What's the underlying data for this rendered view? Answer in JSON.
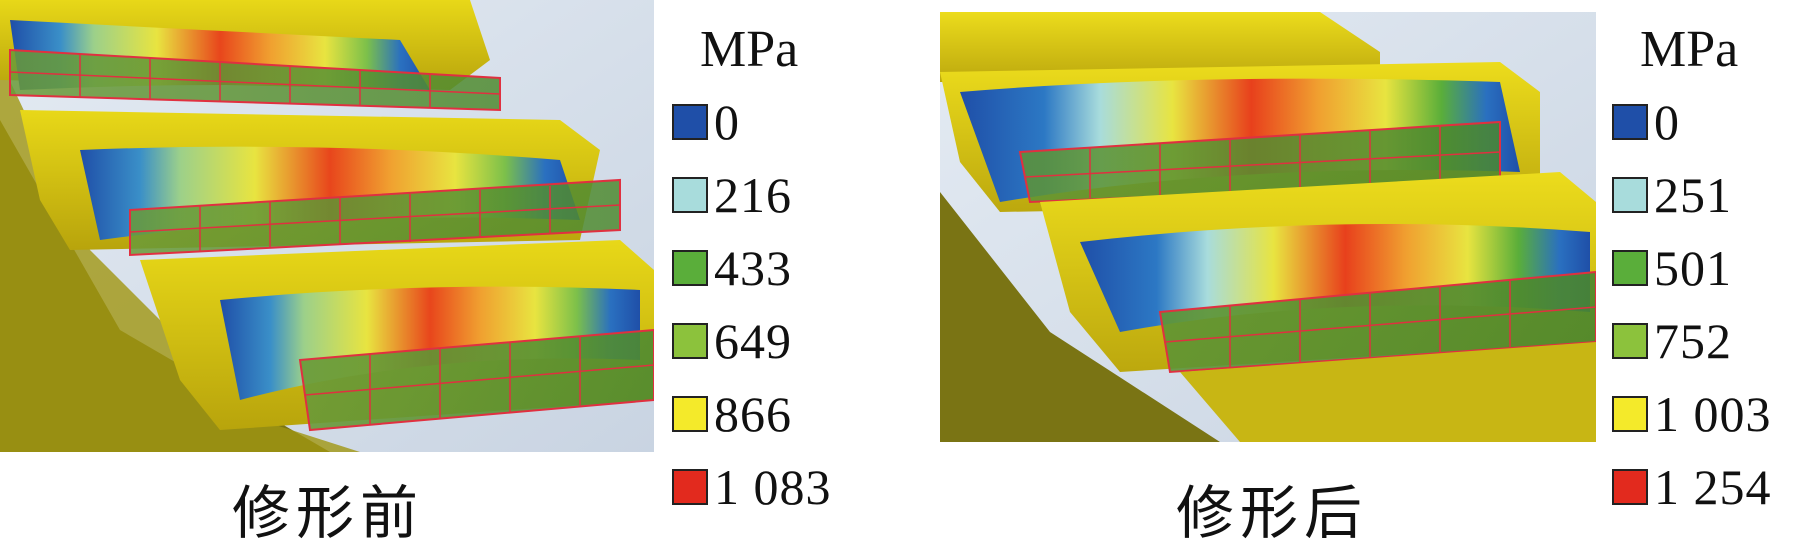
{
  "panels": [
    {
      "caption": "修形前",
      "unit": "MPa",
      "legend": [
        {
          "value": "0",
          "color": "#1f4fa8"
        },
        {
          "value": "216",
          "color": "#a8dcdc"
        },
        {
          "value": "433",
          "color": "#5aae3a"
        },
        {
          "value": "649",
          "color": "#8cc23c"
        },
        {
          "value": "866",
          "color": "#f4ea2a"
        },
        {
          "value": "1 083",
          "color": "#e22a1e"
        }
      ]
    },
    {
      "caption": "修形后",
      "unit": "MPa",
      "legend": [
        {
          "value": "0",
          "color": "#1f4fa8"
        },
        {
          "value": "251",
          "color": "#a8dcdc"
        },
        {
          "value": "501",
          "color": "#5aae3a"
        },
        {
          "value": "752",
          "color": "#8cc23c"
        },
        {
          "value": "1 003",
          "color": "#f4ea2a"
        },
        {
          "value": "1 254",
          "color": "#e22a1e"
        }
      ]
    }
  ]
}
